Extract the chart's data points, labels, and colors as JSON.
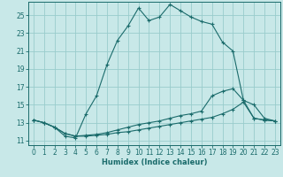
{
  "xlabel": "Humidex (Indice chaleur)",
  "bg_color": "#c8e8e8",
  "grid_color": "#99cccc",
  "line_color": "#1a6b6b",
  "xlim": [
    -0.5,
    23.5
  ],
  "ylim": [
    10.5,
    26.5
  ],
  "xticks": [
    0,
    1,
    2,
    3,
    4,
    5,
    6,
    7,
    8,
    9,
    10,
    11,
    12,
    13,
    14,
    15,
    16,
    17,
    18,
    19,
    20,
    21,
    22,
    23
  ],
  "yticks": [
    11,
    13,
    15,
    17,
    19,
    21,
    23,
    25
  ],
  "series1": [
    [
      0,
      13.3
    ],
    [
      1,
      13.0
    ],
    [
      2,
      12.5
    ],
    [
      3,
      11.5
    ],
    [
      4,
      11.3
    ],
    [
      5,
      14.0
    ],
    [
      6,
      16.0
    ],
    [
      7,
      19.5
    ],
    [
      8,
      22.2
    ],
    [
      9,
      23.8
    ],
    [
      10,
      25.8
    ],
    [
      11,
      24.4
    ],
    [
      12,
      24.8
    ],
    [
      13,
      26.2
    ],
    [
      14,
      25.5
    ],
    [
      15,
      24.8
    ],
    [
      16,
      24.3
    ],
    [
      17,
      24.0
    ],
    [
      18,
      22.0
    ],
    [
      19,
      21.0
    ],
    [
      20,
      15.5
    ],
    [
      21,
      15.0
    ],
    [
      22,
      13.5
    ],
    [
      23,
      13.2
    ]
  ],
  "series2": [
    [
      0,
      13.3
    ],
    [
      1,
      13.0
    ],
    [
      2,
      12.5
    ],
    [
      3,
      11.8
    ],
    [
      4,
      11.5
    ],
    [
      5,
      11.6
    ],
    [
      6,
      11.7
    ],
    [
      7,
      11.9
    ],
    [
      8,
      12.2
    ],
    [
      9,
      12.5
    ],
    [
      10,
      12.8
    ],
    [
      11,
      13.0
    ],
    [
      12,
      13.2
    ],
    [
      13,
      13.5
    ],
    [
      14,
      13.8
    ],
    [
      15,
      14.0
    ],
    [
      16,
      14.3
    ],
    [
      17,
      16.0
    ],
    [
      18,
      16.5
    ],
    [
      19,
      16.8
    ],
    [
      20,
      15.5
    ],
    [
      21,
      13.5
    ],
    [
      22,
      13.3
    ],
    [
      23,
      13.2
    ]
  ],
  "series3": [
    [
      0,
      13.3
    ],
    [
      1,
      13.0
    ],
    [
      2,
      12.5
    ],
    [
      3,
      11.8
    ],
    [
      4,
      11.5
    ],
    [
      5,
      11.5
    ],
    [
      6,
      11.6
    ],
    [
      7,
      11.7
    ],
    [
      8,
      11.9
    ],
    [
      9,
      12.0
    ],
    [
      10,
      12.2
    ],
    [
      11,
      12.4
    ],
    [
      12,
      12.6
    ],
    [
      13,
      12.8
    ],
    [
      14,
      13.0
    ],
    [
      15,
      13.2
    ],
    [
      16,
      13.4
    ],
    [
      17,
      13.6
    ],
    [
      18,
      14.0
    ],
    [
      19,
      14.5
    ],
    [
      20,
      15.3
    ],
    [
      21,
      13.5
    ],
    [
      22,
      13.3
    ],
    [
      23,
      13.2
    ]
  ]
}
